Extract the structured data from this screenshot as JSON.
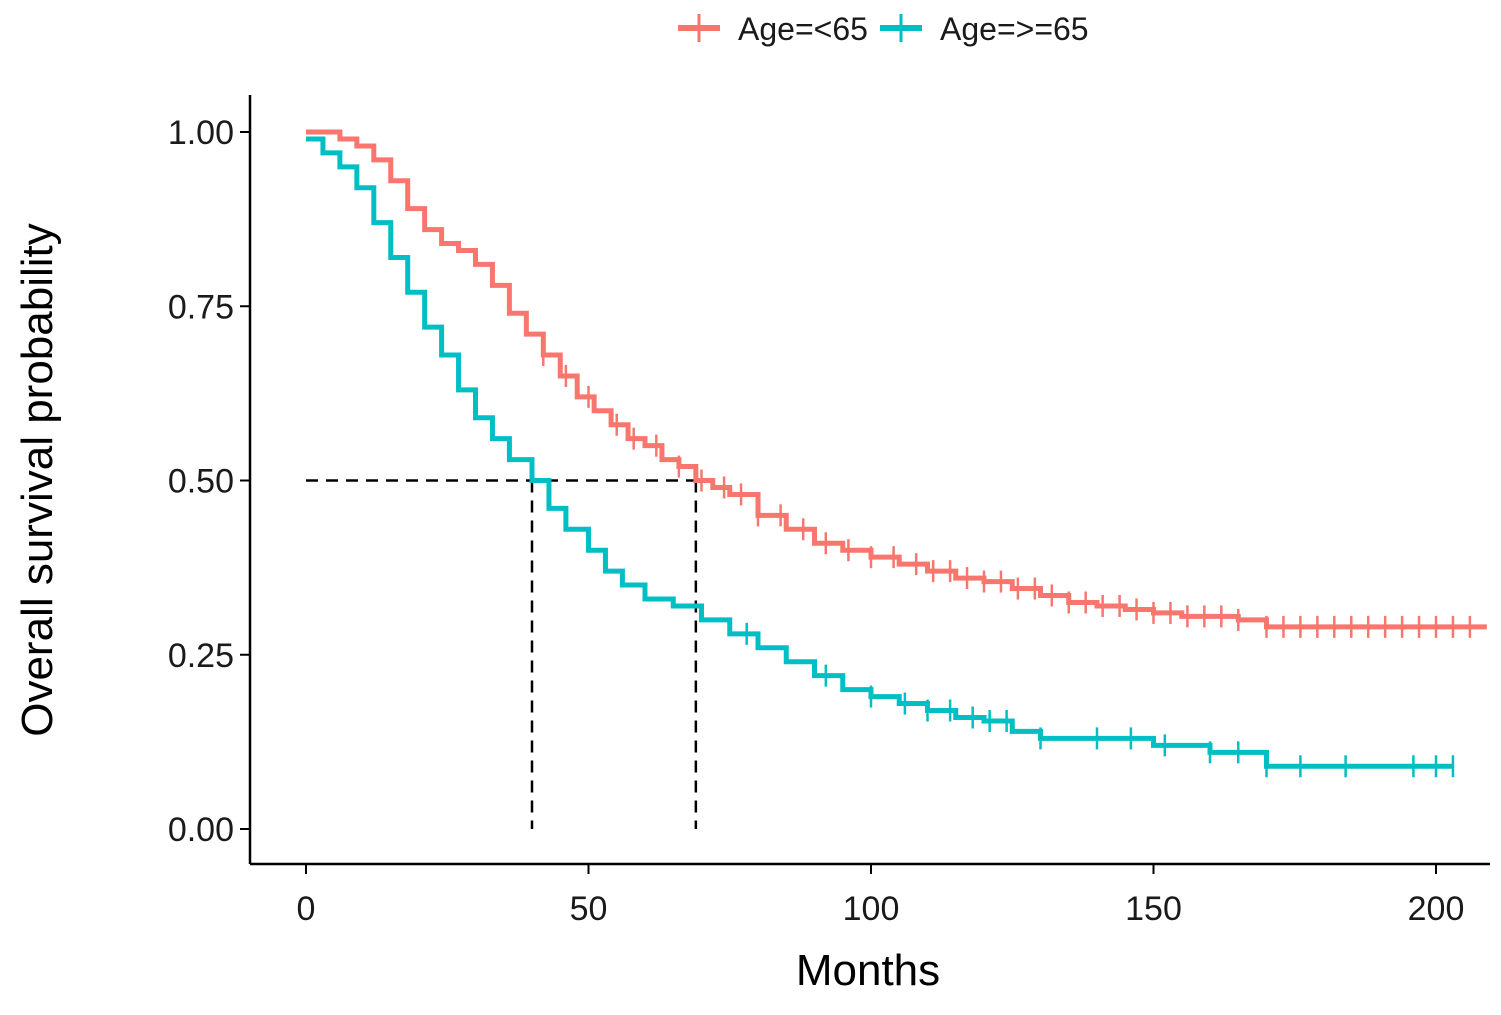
{
  "chart_data": {
    "type": "line",
    "subtype": "kaplan-meier",
    "title": "",
    "xlabel": "Months",
    "ylabel": "Overall survival probability",
    "xlim": [
      -10,
      210
    ],
    "ylim": [
      -0.05,
      1.05
    ],
    "xticks": [
      0,
      50,
      100,
      150,
      200
    ],
    "xtick_labels": [
      "0",
      "50",
      "100",
      "150",
      "200"
    ],
    "yticks": [
      0,
      0.25,
      0.5,
      0.75,
      1.0
    ],
    "ytick_labels": [
      "0.00",
      "0.25",
      "0.50",
      "0.75",
      "1.00"
    ],
    "grid": false,
    "legend_position": "top",
    "median_lines": [
      {
        "series": "Age=<65",
        "x": 69,
        "y": 0.5
      },
      {
        "series": "Age=>=65",
        "x": 40,
        "y": 0.5
      }
    ],
    "series": [
      {
        "name": "Age=<65",
        "color": "#F8766D",
        "points": [
          [
            0,
            1.0
          ],
          [
            3,
            1.0
          ],
          [
            6,
            0.99
          ],
          [
            9,
            0.98
          ],
          [
            12,
            0.96
          ],
          [
            15,
            0.93
          ],
          [
            18,
            0.89
          ],
          [
            21,
            0.86
          ],
          [
            24,
            0.84
          ],
          [
            27,
            0.83
          ],
          [
            30,
            0.81
          ],
          [
            33,
            0.78
          ],
          [
            36,
            0.74
          ],
          [
            39,
            0.71
          ],
          [
            42,
            0.68
          ],
          [
            45,
            0.65
          ],
          [
            48,
            0.62
          ],
          [
            51,
            0.6
          ],
          [
            54,
            0.58
          ],
          [
            57,
            0.56
          ],
          [
            60,
            0.55
          ],
          [
            63,
            0.53
          ],
          [
            66,
            0.52
          ],
          [
            69,
            0.5
          ],
          [
            72,
            0.49
          ],
          [
            75,
            0.48
          ],
          [
            80,
            0.45
          ],
          [
            85,
            0.43
          ],
          [
            90,
            0.41
          ],
          [
            95,
            0.4
          ],
          [
            100,
            0.39
          ],
          [
            105,
            0.38
          ],
          [
            110,
            0.37
          ],
          [
            115,
            0.36
          ],
          [
            120,
            0.355
          ],
          [
            125,
            0.345
          ],
          [
            130,
            0.335
          ],
          [
            135,
            0.325
          ],
          [
            140,
            0.32
          ],
          [
            145,
            0.315
          ],
          [
            150,
            0.31
          ],
          [
            155,
            0.305
          ],
          [
            160,
            0.305
          ],
          [
            165,
            0.3
          ],
          [
            170,
            0.29
          ],
          [
            180,
            0.29
          ],
          [
            190,
            0.29
          ],
          [
            200,
            0.29
          ],
          [
            209,
            0.29
          ]
        ],
        "censor_x": [
          42,
          46,
          50,
          55,
          58,
          62,
          66,
          70,
          74,
          77,
          80,
          84,
          88,
          92,
          96,
          100,
          104,
          108,
          111,
          114,
          117,
          120,
          123,
          126,
          129,
          132,
          135,
          138,
          141,
          144,
          147,
          150,
          153,
          156,
          159,
          162,
          165,
          170,
          173,
          176,
          179,
          182,
          185,
          188,
          191,
          194,
          197,
          200,
          203,
          206
        ]
      },
      {
        "name": "Age=>=65",
        "color": "#00BFC4",
        "points": [
          [
            0,
            0.99
          ],
          [
            3,
            0.97
          ],
          [
            6,
            0.95
          ],
          [
            9,
            0.92
          ],
          [
            12,
            0.87
          ],
          [
            15,
            0.82
          ],
          [
            18,
            0.77
          ],
          [
            21,
            0.72
          ],
          [
            24,
            0.68
          ],
          [
            27,
            0.63
          ],
          [
            30,
            0.59
          ],
          [
            33,
            0.56
          ],
          [
            36,
            0.53
          ],
          [
            40,
            0.5
          ],
          [
            43,
            0.46
          ],
          [
            46,
            0.43
          ],
          [
            50,
            0.4
          ],
          [
            53,
            0.37
          ],
          [
            56,
            0.35
          ],
          [
            60,
            0.33
          ],
          [
            65,
            0.32
          ],
          [
            70,
            0.3
          ],
          [
            75,
            0.28
          ],
          [
            80,
            0.26
          ],
          [
            85,
            0.24
          ],
          [
            90,
            0.22
          ],
          [
            95,
            0.2
          ],
          [
            100,
            0.19
          ],
          [
            105,
            0.18
          ],
          [
            110,
            0.17
          ],
          [
            115,
            0.16
          ],
          [
            120,
            0.155
          ],
          [
            125,
            0.14
          ],
          [
            130,
            0.13
          ],
          [
            140,
            0.13
          ],
          [
            150,
            0.12
          ],
          [
            160,
            0.11
          ],
          [
            170,
            0.09
          ],
          [
            180,
            0.09
          ],
          [
            190,
            0.09
          ],
          [
            203,
            0.09
          ]
        ],
        "censor_x": [
          78,
          92,
          100,
          106,
          110,
          114,
          118,
          121,
          124,
          130,
          140,
          146,
          152,
          160,
          165,
          170,
          176,
          184,
          196,
          200,
          203
        ]
      }
    ]
  }
}
